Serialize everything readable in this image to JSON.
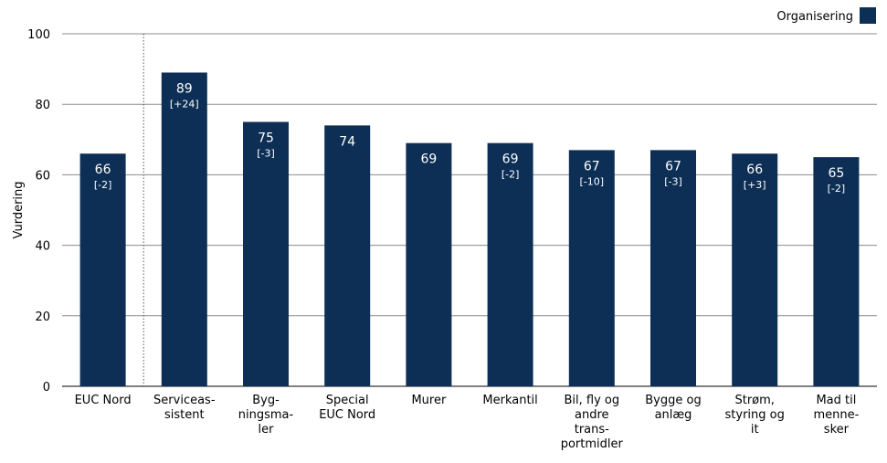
{
  "chart_data": {
    "type": "bar",
    "categories": [
      [
        "EUC Nord"
      ],
      [
        "Serviceas-",
        "sistent"
      ],
      [
        "Byg-",
        "ningsma-",
        "ler"
      ],
      [
        "Special",
        "EUC Nord"
      ],
      [
        "Murer"
      ],
      [
        "Merkantil"
      ],
      [
        "Bil, fly og",
        "andre",
        "trans-",
        "portmidler"
      ],
      [
        "Bygge og",
        "anlæg"
      ],
      [
        "Strøm,",
        "styring og",
        "it"
      ],
      [
        "Mad til",
        "menne-",
        "sker"
      ]
    ],
    "series": [
      {
        "name": "Organisering",
        "values": [
          66,
          89,
          75,
          74,
          69,
          69,
          67,
          67,
          66,
          65
        ],
        "value_labels": [
          "66",
          "89",
          "75",
          "74",
          "69",
          "69",
          "67",
          "67",
          "66",
          "65"
        ],
        "diff_labels": [
          "[-2]",
          "[+24]",
          "[-3]",
          "",
          "",
          "[-2]",
          "[-10]",
          "[-3]",
          "[+3]",
          "[-2]"
        ]
      }
    ],
    "ylabel": "Vurdering",
    "xlabel": "",
    "ylim": [
      0,
      100
    ],
    "yticks": [
      0,
      20,
      40,
      60,
      80,
      100
    ],
    "grid": true,
    "legend_position": "top-right",
    "separator_after_category": 0
  },
  "colors": {
    "bar": "#0d2f55",
    "bar_text": "#ffffff",
    "grid": "#8c8c8c",
    "axis": "#000000",
    "text": "#000000",
    "separator": "#555555"
  }
}
